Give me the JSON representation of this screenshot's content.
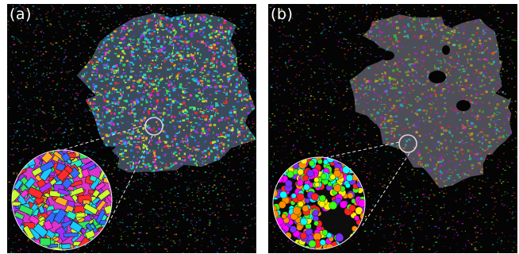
{
  "panels": [
    {
      "id": "a",
      "label": "(a)",
      "cluster_style": "vivid",
      "inset_style": "elongated-tiles",
      "colors": [
        "#ff2a2a",
        "#ff2fd6",
        "#a52cff",
        "#2f6bff",
        "#18c9ff",
        "#1de9c7",
        "#2fe65a",
        "#c8ff2a",
        "#ffb020"
      ]
    },
    {
      "id": "b",
      "label": "(b)",
      "cluster_style": "muted",
      "inset_style": "round-grains-with-voids",
      "colors": [
        "#ff00ff",
        "#00ffff",
        "#39ff14",
        "#ffee00",
        "#ff2020",
        "#7a2cff",
        "#ff8c00"
      ]
    }
  ]
}
